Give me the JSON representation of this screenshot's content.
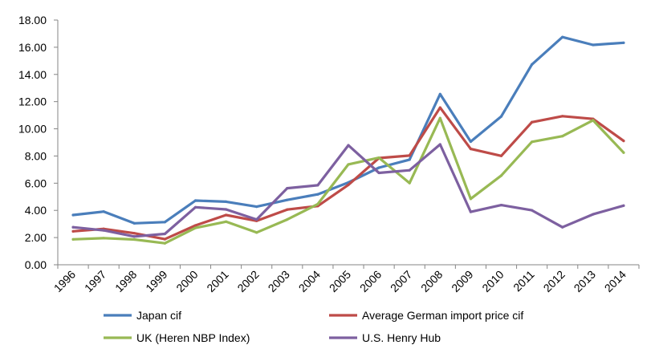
{
  "chart_data": {
    "type": "line",
    "title": "",
    "xlabel": "",
    "ylabel": "",
    "categories": [
      "1996",
      "1997",
      "1998",
      "1999",
      "2000",
      "2001",
      "2002",
      "2003",
      "2004",
      "2005",
      "2006",
      "2007",
      "2008",
      "2009",
      "2010",
      "2011",
      "2012",
      "2013",
      "2014"
    ],
    "y_ticks": [
      "0.00",
      "2.00",
      "4.00",
      "6.00",
      "8.00",
      "10.00",
      "12.00",
      "14.00",
      "16.00",
      "18.00"
    ],
    "ylim": [
      0,
      18
    ],
    "grid": false,
    "legend_position": "bottom",
    "series": [
      {
        "name": "Japan cif",
        "color": "#4a7ebb",
        "values": [
          3.66,
          3.91,
          3.05,
          3.14,
          4.72,
          4.64,
          4.27,
          4.77,
          5.18,
          6.05,
          7.14,
          7.73,
          12.55,
          9.06,
          10.91,
          14.73,
          16.75,
          16.17,
          16.33
        ]
      },
      {
        "name": "Average German import price cif",
        "color": "#be4b48",
        "values": [
          2.46,
          2.64,
          2.32,
          1.88,
          2.89,
          3.66,
          3.23,
          4.06,
          4.32,
          5.88,
          7.85,
          8.03,
          11.56,
          8.52,
          8.01,
          10.49,
          10.93,
          10.73,
          9.11
        ]
      },
      {
        "name": "UK (Heren NBP Index)",
        "color": "#98b954",
        "values": [
          1.87,
          1.96,
          1.86,
          1.58,
          2.71,
          3.17,
          2.37,
          3.33,
          4.46,
          7.38,
          7.87,
          6.01,
          10.79,
          4.85,
          6.56,
          9.04,
          9.46,
          10.63,
          8.25
        ]
      },
      {
        "name": "U.S. Henry Hub",
        "color": "#7d60a0",
        "values": [
          2.76,
          2.53,
          2.08,
          2.27,
          4.23,
          4.07,
          3.33,
          5.63,
          5.85,
          8.79,
          6.76,
          6.95,
          8.85,
          3.89,
          4.39,
          4.01,
          2.76,
          3.71,
          4.35
        ]
      }
    ]
  }
}
